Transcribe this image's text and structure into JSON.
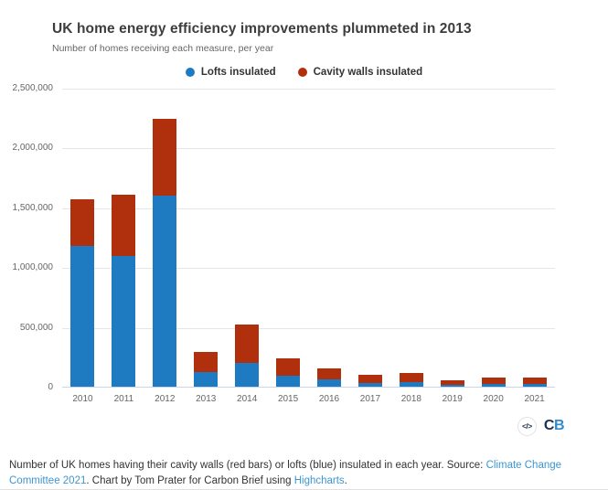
{
  "chart": {
    "title": "UK home energy efficiency improvements plummeted in 2013",
    "subtitle": "Number of homes receiving each measure, per year"
  },
  "legend": {
    "items": [
      {
        "label": "Lofts insulated",
        "color": "#1e7bc1"
      },
      {
        "label": "Cavity walls insulated",
        "color": "#b0300e"
      }
    ]
  },
  "chart_data": {
    "type": "bar",
    "stacked": true,
    "title": "UK home energy efficiency improvements plummeted in 2013",
    "subtitle": "Number of homes receiving each measure, per year",
    "xlabel": "",
    "ylabel": "",
    "ylim": [
      0,
      2500000
    ],
    "grid": true,
    "legend_position": "top",
    "categories": [
      "2010",
      "2011",
      "2012",
      "2013",
      "2014",
      "2015",
      "2016",
      "2017",
      "2018",
      "2019",
      "2020",
      "2021"
    ],
    "series": [
      {
        "name": "Lofts insulated",
        "color": "#1e7bc1",
        "values": [
          1180000,
          1095000,
          1600000,
          120000,
          200000,
          90000,
          58000,
          30000,
          40000,
          18000,
          25000,
          23000
        ]
      },
      {
        "name": "Cavity walls insulated",
        "color": "#b0300e",
        "values": [
          390000,
          510000,
          640000,
          170000,
          320000,
          150000,
          97000,
          70000,
          78000,
          37000,
          48000,
          57000
        ]
      }
    ],
    "yticks": [
      {
        "value": 2500000,
        "label": "2,500,000"
      },
      {
        "value": 2000000,
        "label": "2,000,000"
      },
      {
        "value": 1500000,
        "label": "1,500,000"
      },
      {
        "value": 1000000,
        "label": "1,000,000"
      },
      {
        "value": 500000,
        "label": "500,000"
      },
      {
        "value": 0,
        "label": "0"
      }
    ]
  },
  "footer": {
    "embed_icon": "</>",
    "logo_c": "C",
    "logo_b": "B"
  },
  "caption": {
    "parts": [
      {
        "text": "Number of UK homes having their cavity walls (red bars) or lofts (blue) insulated in each year. Source: "
      },
      {
        "text": "Climate Change Committee 2021"
      },
      {
        "text": ". Chart by Tom Prater for Carbon Brief using "
      },
      {
        "text": "Highcharts"
      },
      {
        "text": "."
      }
    ]
  },
  "colors": {
    "lofts_blue": "#1e7bc1",
    "cavity_red": "#b0300e",
    "gridline": "#e6e6e6",
    "axis_line": "#ccd6eb",
    "link_blue": "#3d96cf",
    "title_text": "#3d3d3d",
    "muted_text": "#666666"
  }
}
